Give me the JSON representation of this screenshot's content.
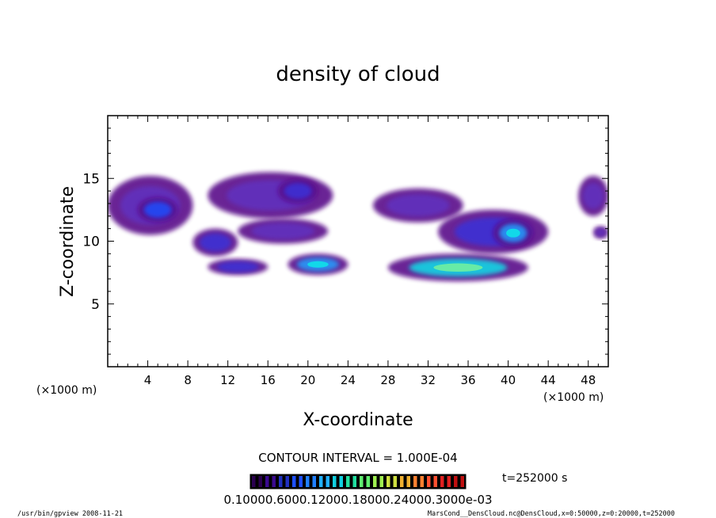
{
  "chart_data": {
    "type": "heatmap",
    "title": "density of cloud",
    "xlabel": "X-coordinate",
    "ylabel": "Z-coordinate",
    "x_unit_label": "(×1000 m)",
    "x_unit_label_left": "(×1000 m)",
    "xlim": [
      0,
      50
    ],
    "ylim": [
      0,
      20
    ],
    "x_ticks": [
      4,
      8,
      12,
      16,
      20,
      24,
      28,
      32,
      36,
      40,
      44,
      48
    ],
    "y_ticks": [
      5,
      10,
      15
    ],
    "contour_interval_label": "CONTOUR INTERVAL = 1.000E-04",
    "time_label": "t=252000 s",
    "colorbar_labels": "0.10000.6000.12000.18000.24000.3000e-03",
    "colors": [
      "#5a0a8a",
      "#7a1aa8",
      "#6030c0",
      "#3a30d8",
      "#1e50ff",
      "#20a0ff",
      "#10e0e8",
      "#70f0a0",
      "#d0f060",
      "#ff9040"
    ],
    "cloud_regions": [
      {
        "label": "upper-left",
        "x": [
          0,
          8.5
        ],
        "z": [
          10.5,
          15.2
        ],
        "level": 2
      },
      {
        "label": "upper-left-core",
        "x": [
          3,
          7
        ],
        "z": [
          11.5,
          13.5
        ],
        "level": 4
      },
      {
        "label": "upper-center",
        "x": [
          10,
          22.5
        ],
        "z": [
          11.8,
          15.5
        ],
        "level": 2
      },
      {
        "label": "upper-center-core",
        "x": [
          17,
          21
        ],
        "z": [
          13,
          15
        ],
        "level": 3
      },
      {
        "label": "mid-left",
        "x": [
          8.5,
          13
        ],
        "z": [
          8.8,
          11
        ],
        "level": 3
      },
      {
        "label": "mid-center",
        "x": [
          13,
          22
        ],
        "z": [
          9.8,
          11.8
        ],
        "level": 2
      },
      {
        "label": "lower-left",
        "x": [
          10,
          16
        ],
        "z": [
          7.3,
          8.6
        ],
        "level": 3
      },
      {
        "label": "lower-center",
        "x": [
          18,
          24
        ],
        "z": [
          7.3,
          9.0
        ],
        "level": 5
      },
      {
        "label": "right-upper",
        "x": [
          26.5,
          35.5
        ],
        "z": [
          11.5,
          14.2
        ],
        "level": 2
      },
      {
        "label": "right-mid",
        "x": [
          33,
          44
        ],
        "z": [
          9.0,
          12.5
        ],
        "level": 3
      },
      {
        "label": "right-core",
        "x": [
          38.5,
          42.5
        ],
        "z": [
          9.5,
          11.8
        ],
        "level": 5
      },
      {
        "label": "right-lower-arc",
        "x": [
          28,
          42
        ],
        "z": [
          6.8,
          9.0
        ],
        "level": 6
      },
      {
        "label": "far-right",
        "x": [
          47,
          50
        ],
        "z": [
          12,
          15.2
        ],
        "level": 2
      },
      {
        "label": "far-right-low",
        "x": [
          48.5,
          50
        ],
        "z": [
          10.2,
          11.2
        ],
        "level": 2
      }
    ]
  },
  "footer": {
    "left": "/usr/bin/gpview  2008-11-21",
    "right": "MarsCond__DensCloud.nc@DensCloud,x=0:50000,z=0:20000,t=252000"
  }
}
